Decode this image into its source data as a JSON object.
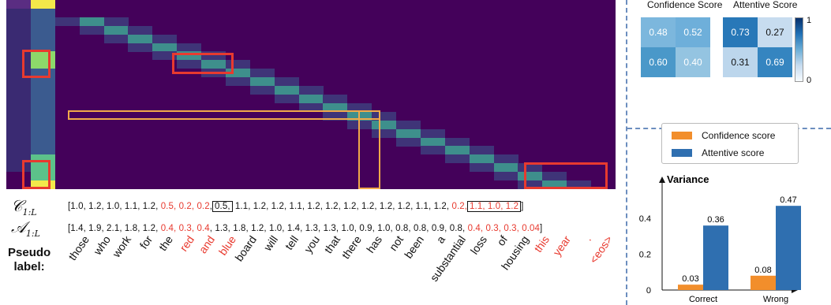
{
  "heatmap": {
    "cols": 25,
    "rows": 22,
    "background_color": "#44015a",
    "diagonal_color": "#3e8f8c",
    "highlight_color": "#8dd86a",
    "highlight_bright": "#f3e84a"
  },
  "sequences": {
    "c_label": "𝒞",
    "c_sub": "1:L",
    "a_label": "𝒜",
    "a_sub": "1:L",
    "c_values": {
      "part1": "[1.0, 1.2, 1.0, 1.1, 1.2, ",
      "red1": "0.5, 0.2, 0.2",
      "comma": ",",
      "boxed1": "0.5,",
      "part2": " 1.1, 1.2,  1.2, 1.1, 1.2, 1.2,  1.2, 1.2, 1.2, 1.2, 1.1, 1.2, ",
      "red2": "0.2,",
      "boxed2": "1.1, 1.0, 1.2",
      "end": "]"
    },
    "a_values": {
      "part1": "[1.4, 1.9, 2.1, 1.8, 1.2, ",
      "red1": "0.4, 0.3, 0.4",
      "part2": ", 1.3, 1.8, 1.2,  1.0, 1.4, 1.3, 1.3,  1.0, 0.9, 1.0, 0.8, 0.8, 0.9, 0.8, ",
      "red2": "0.4, 0.3, 0.3, 0.04",
      "end": "]"
    }
  },
  "pseudo_label": {
    "line1": "Pseudo",
    "line2": "label:",
    "words": [
      {
        "text": "those",
        "red": false
      },
      {
        "text": "who",
        "red": false
      },
      {
        "text": "work",
        "red": false
      },
      {
        "text": "for",
        "red": false
      },
      {
        "text": "the",
        "red": false
      },
      {
        "text": "red",
        "red": true
      },
      {
        "text": "and",
        "red": true
      },
      {
        "text": "blue",
        "red": true
      },
      {
        "text": "board",
        "red": false
      },
      {
        "text": "will",
        "red": false
      },
      {
        "text": "tell",
        "red": false
      },
      {
        "text": "you",
        "red": false
      },
      {
        "text": "that",
        "red": false
      },
      {
        "text": "there",
        "red": false
      },
      {
        "text": "has",
        "red": false
      },
      {
        "text": "not",
        "red": false
      },
      {
        "text": "been",
        "red": false
      },
      {
        "text": "a",
        "red": false
      },
      {
        "text": "substantial",
        "red": false
      },
      {
        "text": "loss",
        "red": false
      },
      {
        "text": "of",
        "red": false
      },
      {
        "text": "housing",
        "red": false
      },
      {
        "text": "this",
        "red": true
      },
      {
        "text": "year",
        "red": true
      },
      {
        "text": ".",
        "red": true
      },
      {
        "text": "<eos>",
        "red": true
      }
    ]
  },
  "matrices": {
    "confidence": {
      "title": "Confidence Score",
      "values": [
        "0.48",
        "0.52",
        "0.60",
        "0.40"
      ],
      "colors": [
        "#7cb7dd",
        "#6eafda",
        "#4a98c9",
        "#94c4e1"
      ]
    },
    "attentive": {
      "title": "Attentive Score",
      "values": [
        "0.73",
        "0.27",
        "0.31",
        "0.69"
      ],
      "colors": [
        "#2878b8",
        "#c7dcef",
        "#bcd6ec",
        "#3585c0"
      ]
    },
    "colorbar_max": "1",
    "colorbar_min": "0"
  },
  "chart_data": {
    "type": "bar",
    "categories": [
      "Correct",
      "Wrong"
    ],
    "series": [
      {
        "name": "Confidence score",
        "values": [
          0.03,
          0.08
        ],
        "labels": [
          "0.03",
          "0.08"
        ],
        "color": "#f28e2b"
      },
      {
        "name": "Attentive score",
        "values": [
          0.36,
          0.47
        ],
        "labels": [
          "0.36",
          "0.47"
        ],
        "color": "#2f6fb0"
      }
    ],
    "ylabel": "Variance",
    "ylim": [
      0,
      0.55
    ],
    "yticks": [
      "0",
      "0.2",
      "0.4"
    ],
    "legend": "top"
  }
}
